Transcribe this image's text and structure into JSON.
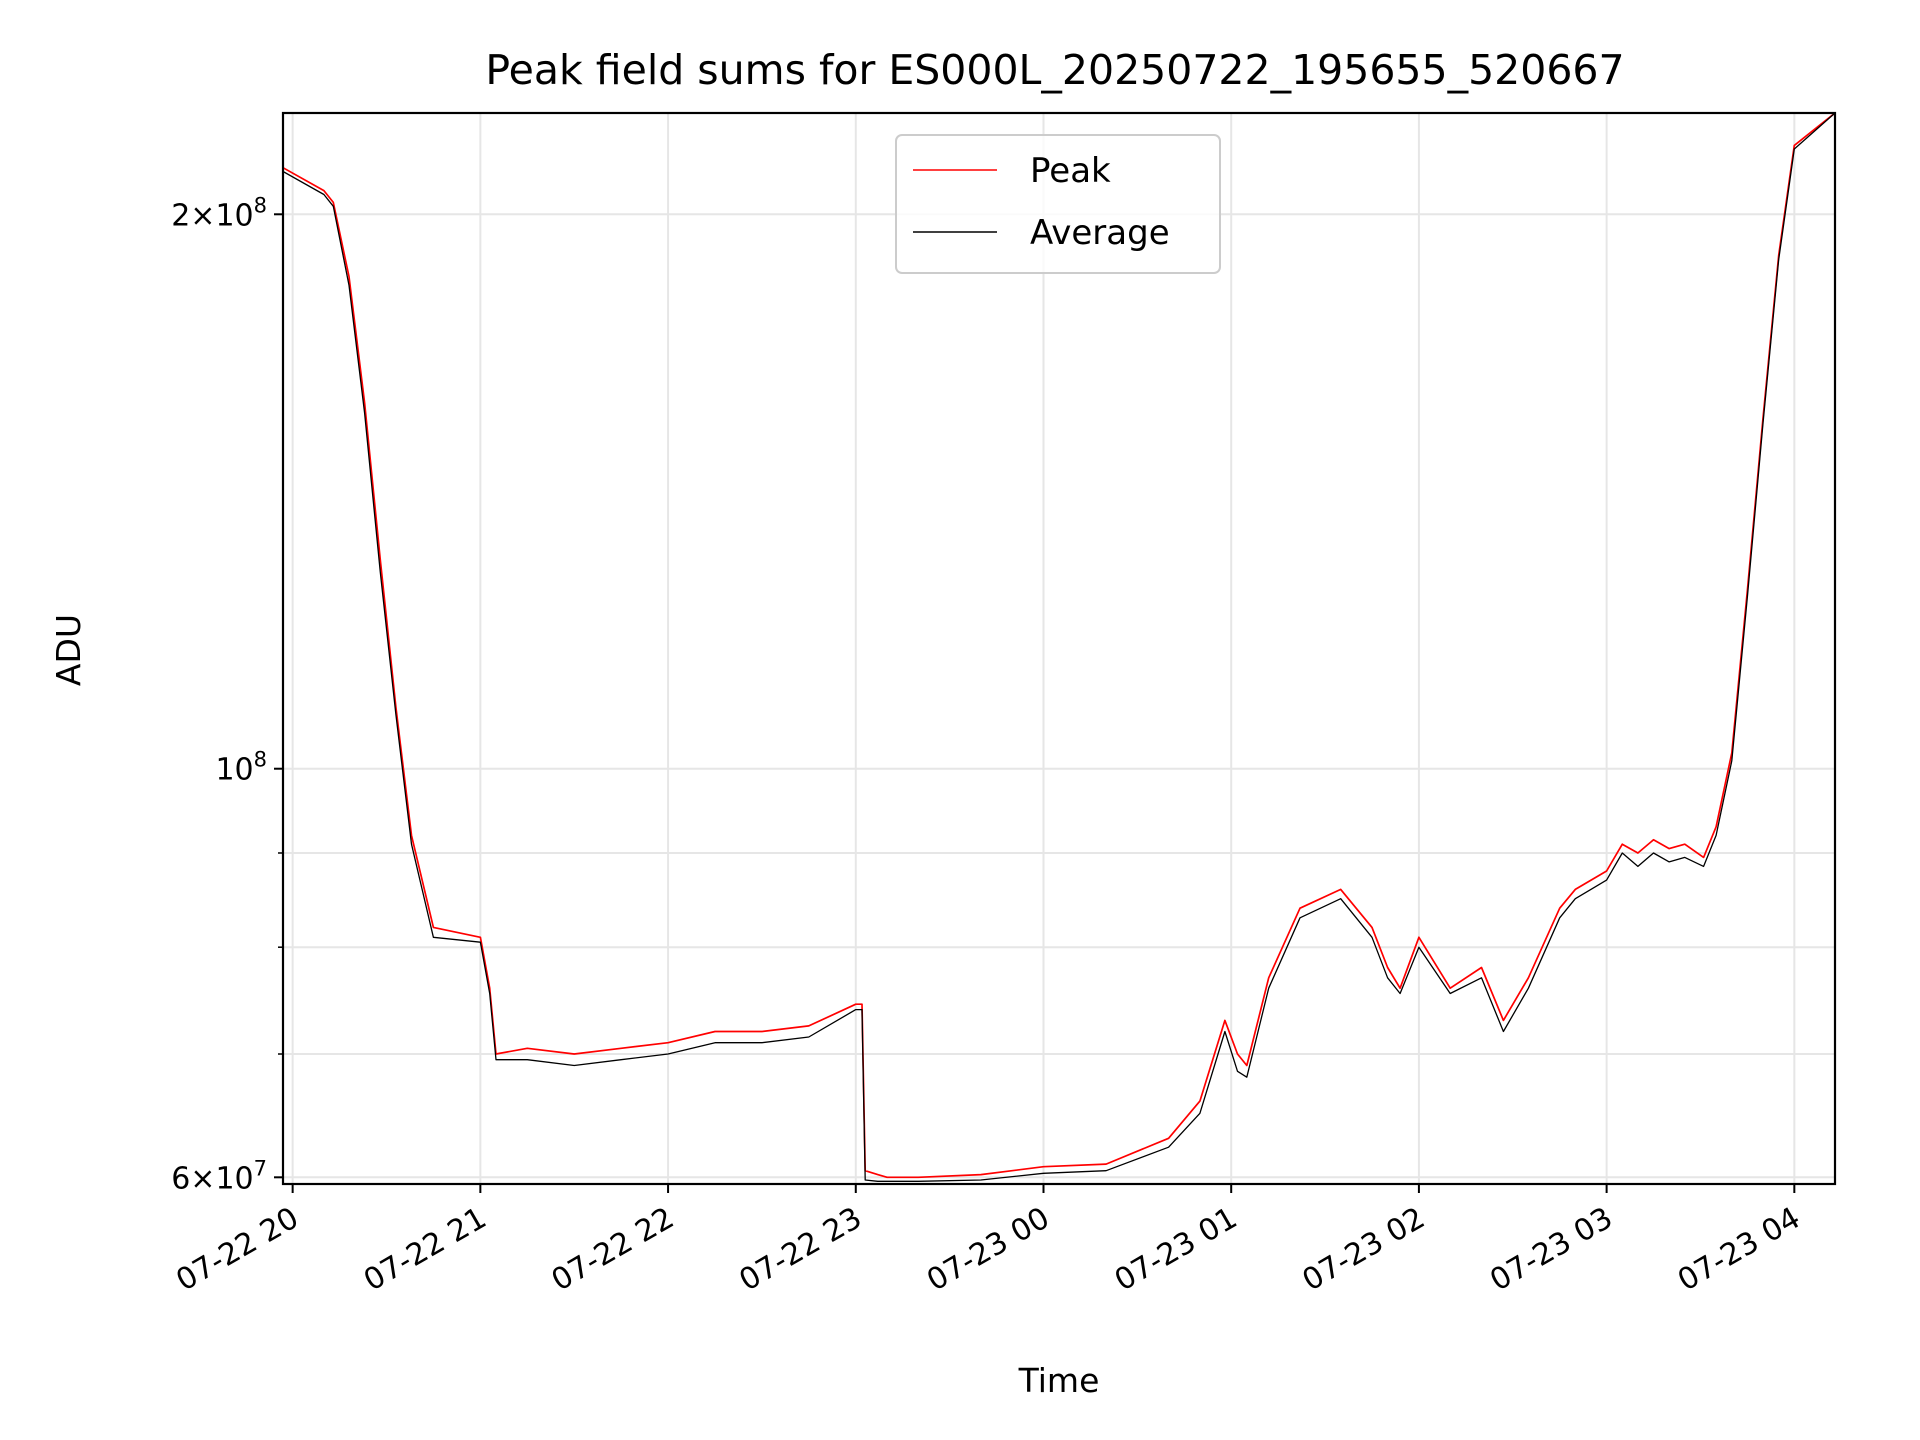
{
  "chart_data": {
    "type": "line",
    "title": "Peak field sums for ES000L_20250722_195655_520667",
    "xlabel": "Time",
    "ylabel": "ADU",
    "xlim": [
      "2025-07-22T19:56:55",
      "2025-07-23T04:13:00"
    ],
    "ylim": [
      59500000,
      227000000
    ],
    "yscale": "log",
    "grid": true,
    "legend_position": "upper center",
    "x_ticks": [
      {
        "value": "2025-07-22T20:00:00",
        "label": "07-22 20"
      },
      {
        "value": "2025-07-22T21:00:00",
        "label": "07-22 21"
      },
      {
        "value": "2025-07-22T22:00:00",
        "label": "07-22 22"
      },
      {
        "value": "2025-07-22T23:00:00",
        "label": "07-22 23"
      },
      {
        "value": "2025-07-23T00:00:00",
        "label": "07-23 00"
      },
      {
        "value": "2025-07-23T01:00:00",
        "label": "07-23 01"
      },
      {
        "value": "2025-07-23T02:00:00",
        "label": "07-23 02"
      },
      {
        "value": "2025-07-23T03:00:00",
        "label": "07-23 03"
      },
      {
        "value": "2025-07-23T04:00:00",
        "label": "07-23 04"
      }
    ],
    "y_major_ticks": [
      {
        "value": 60000000,
        "mantissa": "6",
        "exp": "7"
      },
      {
        "value": 100000000,
        "mantissa": "",
        "exp": "8"
      },
      {
        "value": 200000000,
        "mantissa": "2",
        "exp": "8"
      }
    ],
    "y_minor_ticks": [
      70000000,
      80000000,
      90000000
    ],
    "series": [
      {
        "name": "Peak",
        "color": "#ff0000",
        "x": [
          "2025-07-22T19:56:55",
          "2025-07-22T20:10:00",
          "2025-07-22T20:13:00",
          "2025-07-22T20:18:00",
          "2025-07-22T20:23:00",
          "2025-07-22T20:28:00",
          "2025-07-22T20:33:00",
          "2025-07-22T20:38:00",
          "2025-07-22T20:45:00",
          "2025-07-22T21:00:00",
          "2025-07-22T21:03:00",
          "2025-07-22T21:05:00",
          "2025-07-22T21:15:00",
          "21:30",
          "2025-07-22T21:45:00",
          "2025-07-22T22:00:00",
          "2025-07-22T22:15:00",
          "2025-07-22T22:30:00",
          "2025-07-22T22:45:00",
          "2025-07-22T23:00:00",
          "2025-07-22T23:02:00",
          "2025-07-22T23:03:00",
          "2025-07-22T23:07:00",
          "2025-07-22T23:10:00",
          "2025-07-22T23:20:00",
          "2025-07-22T23:40:00",
          "2025-07-23T00:00:00",
          "2025-07-23T00:20:00",
          "2025-07-23T00:40:00",
          "2025-07-23T00:50:00",
          "2025-07-23T00:58:00",
          "2025-07-23T01:02:00",
          "2025-07-23T01:05:00",
          "2025-07-23T01:12:00",
          "2025-07-23T01:22:00",
          "2025-07-23T01:35:00",
          "2025-07-23T01:45:00",
          "2025-07-23T01:50:00",
          "2025-07-23T01:54:00",
          "2025-07-23T02:00:00",
          "2025-07-23T02:10:00",
          "2025-07-23T02:20:00",
          "2025-07-23T02:27:00",
          "2025-07-23T02:35:00",
          "2025-07-23T02:45:00",
          "2025-07-23T02:50:00",
          "2025-07-23T03:00:00",
          "2025-07-23T03:05:00",
          "2025-07-23T03:10:00",
          "2025-07-23T03:15:00",
          "2025-07-23T03:20:00",
          "2025-07-23T03:25:00",
          "2025-07-23T03:31:00",
          "2025-07-23T03:35:00",
          "2025-07-23T03:40:00",
          "2025-07-23T03:45:00",
          "2025-07-23T03:50:00",
          "2025-07-23T03:55:00",
          "2025-07-23T04:00:00",
          "2025-07-23T04:13:00"
        ],
        "y": [
          212000000,
          206000000,
          203000000,
          185000000,
          158000000,
          130000000,
          108000000,
          92000000,
          82000000,
          81000000,
          76000000,
          70000000,
          70500000,
          70000000,
          70500000,
          71000000,
          72000000,
          72000000,
          72500000,
          74500000,
          74500000,
          60500000,
          60200000,
          60000000,
          60000000,
          60200000,
          60800000,
          61000000,
          63000000,
          66000000,
          73000000,
          70000000,
          69000000,
          77000000,
          84000000,
          86000000,
          82000000,
          78000000,
          76000000,
          81000000,
          76000000,
          78000000,
          73000000,
          77000000,
          84000000,
          86000000,
          88000000,
          91000000,
          90000000,
          91500000,
          90500000,
          91000000,
          89500000,
          93000000,
          102000000,
          125000000,
          155000000,
          190000000,
          218000000,
          227000000
        ]
      },
      {
        "name": "Average",
        "color": "#000000",
        "x": [
          "2025-07-22T19:56:55",
          "2025-07-22T20:10:00",
          "2025-07-22T20:13:00",
          "2025-07-22T20:18:00",
          "2025-07-22T20:23:00",
          "2025-07-22T20:28:00",
          "2025-07-22T20:33:00",
          "2025-07-22T20:38:00",
          "2025-07-22T20:45:00",
          "2025-07-22T21:00:00",
          "2025-07-22T21:03:00",
          "2025-07-22T21:05:00",
          "2025-07-22T21:15:00",
          "2025-07-22T21:30:00",
          "2025-07-22T21:45:00",
          "2025-07-22T22:00:00",
          "2025-07-22T22:15:00",
          "2025-07-22T22:30:00",
          "2025-07-22T22:45:00",
          "2025-07-22T23:00:00",
          "2025-07-22T23:02:00",
          "2025-07-22T23:03:00",
          "2025-07-22T23:07:00",
          "2025-07-22T23:10:00",
          "2025-07-22T23:20:00",
          "2025-07-22T23:40:00",
          "2025-07-23T00:00:00",
          "2025-07-23T00:20:00",
          "2025-07-23T00:40:00",
          "2025-07-23T00:50:00",
          "2025-07-23T00:58:00",
          "2025-07-23T01:02:00",
          "2025-07-23T01:05:00",
          "2025-07-23T01:12:00",
          "2025-07-23T01:22:00",
          "2025-07-23T01:35:00",
          "2025-07-23T01:45:00",
          "2025-07-23T01:50:00",
          "2025-07-23T01:54:00",
          "2025-07-23T02:00:00",
          "2025-07-23T02:10:00",
          "2025-07-23T02:20:00",
          "2025-07-23T02:27:00",
          "2025-07-23T02:35:00",
          "2025-07-23T02:45:00",
          "2025-07-23T02:50:00",
          "2025-07-23T03:00:00",
          "2025-07-23T03:05:00",
          "2025-07-23T03:10:00",
          "2025-07-23T03:15:00",
          "2025-07-23T03:20:00",
          "2025-07-23T03:25:00",
          "2025-07-23T03:31:00",
          "2025-07-23T03:35:00",
          "2025-07-23T03:40:00",
          "2025-07-23T03:45:00",
          "2025-07-23T03:50:00",
          "2025-07-23T03:55:00",
          "2025-07-23T04:00:00",
          "2025-07-23T04:13:00"
        ],
        "y": [
          211000000,
          205000000,
          202000000,
          183000000,
          156000000,
          128000000,
          107000000,
          91000000,
          81000000,
          80500000,
          75500000,
          69500000,
          69500000,
          69000000,
          69500000,
          70000000,
          71000000,
          71000000,
          71500000,
          74000000,
          74000000,
          59800000,
          59700000,
          59700000,
          59700000,
          59800000,
          60300000,
          60500000,
          62300000,
          65000000,
          72000000,
          68500000,
          68000000,
          76000000,
          83000000,
          85000000,
          81000000,
          77000000,
          75500000,
          80000000,
          75500000,
          77000000,
          72000000,
          76000000,
          83000000,
          85000000,
          87000000,
          90000000,
          88500000,
          90000000,
          89000000,
          89500000,
          88500000,
          92000000,
          101000000,
          124000000,
          154000000,
          189000000,
          217000000,
          227000000
        ]
      }
    ]
  }
}
